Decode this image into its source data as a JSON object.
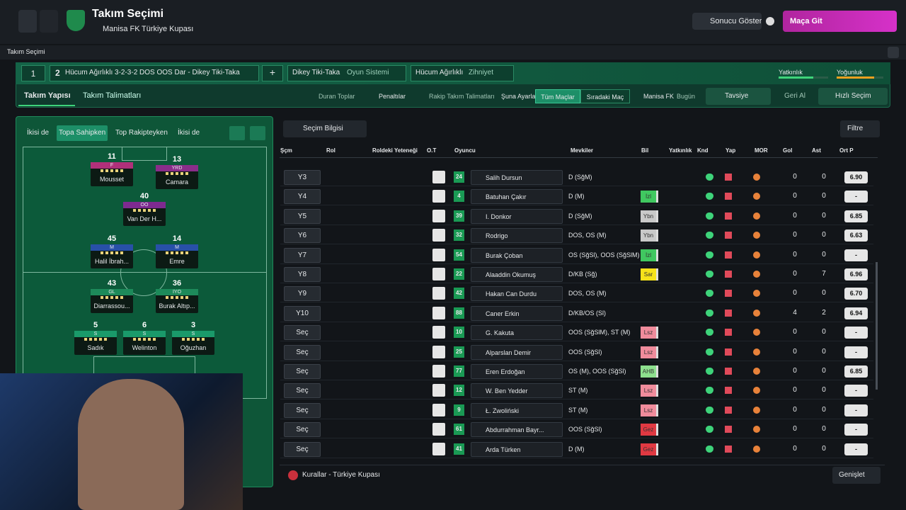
{
  "header": {
    "title": "Takım Seçimi",
    "club": "Manisa FK",
    "competition": "Türkiye Kupası",
    "show_result": "Sonucu Göster",
    "go_match": "Maça Git"
  },
  "window_title": "Takım Seçimi",
  "tactic_bar": {
    "slot": "1",
    "tactic_num": "2",
    "tactic_name": "Hücum Ağırlıklı 3-2-3-2 DOS OOS Dar - Dikey Tiki-Taka",
    "add": "+",
    "system_value": "Dikey Tiki-Taka",
    "system_label": "Oyun Sistemi",
    "mentality_value": "Hücum Ağırlıklı",
    "mentality_label": "Zihniyet",
    "familiarity": "Yatkınlık",
    "fatigue": "Yoğunluk"
  },
  "tabs": [
    "Takım Yapısı",
    "Takım Talimatları"
  ],
  "toolbar": {
    "set_pieces": "Duran Toplar",
    "penalties": "Penaltılar",
    "opposition": "Rakip Takım Talimatları",
    "set_to": "Şuna Ayarla",
    "all_matches": "Tüm Maçlar",
    "next_match": "Sıradaki Maç",
    "club": "Manisa FK",
    "today": "Bugün",
    "advice": "Tavsiye",
    "undo": "Geri Al",
    "quick_pick": "Hızlı Seçim"
  },
  "pitch_tabs": [
    "İkisi de",
    "Topa Sahipken",
    "Top Rakipteyken",
    "İkisi de"
  ],
  "pitch_players": [
    {
      "num": "11",
      "pos": "F",
      "name": "Mousset"
    },
    {
      "num": "13",
      "pos": "YRD",
      "name": "Camara"
    },
    {
      "num": "40",
      "pos": "OO",
      "name": "Van Der H..."
    },
    {
      "num": "45",
      "pos": "M",
      "name": "Halil İbrah..."
    },
    {
      "num": "14",
      "pos": "M",
      "name": "Emre"
    },
    {
      "num": "43",
      "pos": "GL",
      "name": "Diarrassou..."
    },
    {
      "num": "36",
      "pos": "İYO",
      "name": "Burak Altıp..."
    },
    {
      "num": "5",
      "pos": "S",
      "name": "Sadık"
    },
    {
      "num": "6",
      "pos": "S",
      "name": "Welinton"
    },
    {
      "num": "3",
      "pos": "S",
      "name": "Oğuzhan"
    }
  ],
  "selection_info": "Seçim Bilgisi",
  "filter": "Filtre",
  "table": {
    "columns": [
      "Şçm",
      "Rol",
      "Roldeki Yeteneği",
      "O.T",
      "Oyuncu",
      "Mevkiler",
      "Bil",
      "Yatkınlık",
      "Knd",
      "Yap",
      "MOR",
      "Gol",
      "Ast",
      "Ort P"
    ],
    "rows": [
      {
        "sel": "Y3",
        "num": "24",
        "name": "Salih Dursun",
        "positions": "D (SğM)",
        "bil": null,
        "gol": 0,
        "ast": 0,
        "rating": "6.90"
      },
      {
        "sel": "Y4",
        "num": "4",
        "name": "Batuhan Çakır",
        "positions": "D (M)",
        "bil": "İzl",
        "gol": 0,
        "ast": 0,
        "rating": "-"
      },
      {
        "sel": "Y5",
        "num": "39",
        "name": "I. Donkor",
        "positions": "D (SğM)",
        "bil": "Ybn",
        "gol": 0,
        "ast": 0,
        "rating": "6.85"
      },
      {
        "sel": "Y6",
        "num": "32",
        "name": "Rodrigo",
        "positions": "DOS, OS (M)",
        "bil": "Ybn",
        "gol": 0,
        "ast": 0,
        "rating": "6.63"
      },
      {
        "sel": "Y7",
        "num": "54",
        "name": "Burak Çoban",
        "positions": "OS (SğSl), OOS (SğSlM)",
        "bil": "İzl",
        "gol": 0,
        "ast": 0,
        "rating": "-"
      },
      {
        "sel": "Y8",
        "num": "22",
        "name": "Alaaddin Okumuş",
        "positions": "D/KB (Sğ)",
        "bil": "Sar",
        "gol": 0,
        "ast": 7,
        "rating": "6.96"
      },
      {
        "sel": "Y9",
        "num": "42",
        "name": "Hakan Can Durdu",
        "positions": "DOS, OS (M)",
        "bil": null,
        "gol": 0,
        "ast": 0,
        "rating": "6.70"
      },
      {
        "sel": "Y10",
        "num": "88",
        "name": "Caner Erkin",
        "positions": "D/KB/OS (Sl)",
        "bil": null,
        "gol": 4,
        "ast": 2,
        "rating": "6.94"
      },
      {
        "sel": "Seç",
        "num": "10",
        "name": "G. Kakuta",
        "positions": "OOS (SğSlM), ST (M)",
        "bil": "Lsz",
        "gol": 0,
        "ast": 0,
        "rating": "-"
      },
      {
        "sel": "Seç",
        "num": "25",
        "name": "Alparslan Demir",
        "positions": "OOS (SğSl)",
        "bil": "Lsz",
        "gol": 0,
        "ast": 0,
        "rating": "-"
      },
      {
        "sel": "Seç",
        "num": "77",
        "name": "Eren Erdoğan",
        "positions": "OS (M), OOS (SğSl)",
        "bil": "AHB",
        "gol": 0,
        "ast": 0,
        "rating": "6.85"
      },
      {
        "sel": "Seç",
        "num": "12",
        "name": "W. Ben Yedder",
        "positions": "ST (M)",
        "bil": "Lsz",
        "gol": 0,
        "ast": 0,
        "rating": "-"
      },
      {
        "sel": "Seç",
        "num": "9",
        "name": "Ł. Zwoliński",
        "positions": "ST (M)",
        "bil": "Lsz",
        "gol": 0,
        "ast": 0,
        "rating": "-"
      },
      {
        "sel": "Seç",
        "num": "61",
        "name": "Abdurrahman Bayr...",
        "positions": "OOS (SğSl)",
        "bil": "Gez",
        "gol": 0,
        "ast": 0,
        "rating": "-"
      },
      {
        "sel": "Seç",
        "num": "41",
        "name": "Arda Türken",
        "positions": "D (M)",
        "bil": "Gez",
        "gol": 0,
        "ast": 0,
        "rating": "-"
      }
    ]
  },
  "footer": {
    "rules": "Kurallar - Türkiye Kupası",
    "expand": "Genişlet"
  }
}
